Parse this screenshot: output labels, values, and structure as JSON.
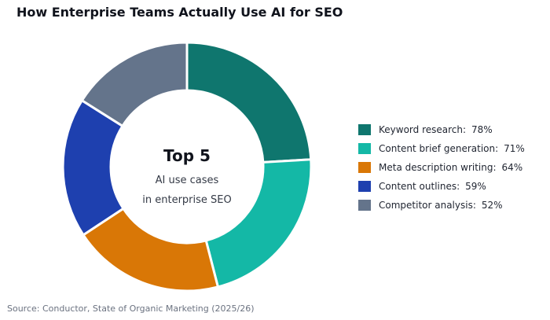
{
  "chart_data": {
    "type": "pie",
    "title": "How Enterprise Teams Actually Use AI for SEO",
    "center_text": {
      "main": "Top 5",
      "line1": "AI use cases",
      "line2": "in enterprise SEO"
    },
    "legend_position": "right",
    "source": "Source: Conductor, State of Organic Marketing (2025/26)",
    "slices": [
      {
        "label": "Keyword research:",
        "value": 78,
        "display": "78%",
        "color": "#0f766e"
      },
      {
        "label": "Content brief generation:",
        "value": 71,
        "display": "71%",
        "color": "#14b8a6"
      },
      {
        "label": "Meta description writing:",
        "value": 64,
        "display": "64%",
        "color": "#d97706"
      },
      {
        "label": "Content outlines:",
        "value": 59,
        "display": "59%",
        "color": "#1e40af"
      },
      {
        "label": "Competitor analysis:",
        "value": 52,
        "display": "52%",
        "color": "#64748b"
      }
    ]
  }
}
